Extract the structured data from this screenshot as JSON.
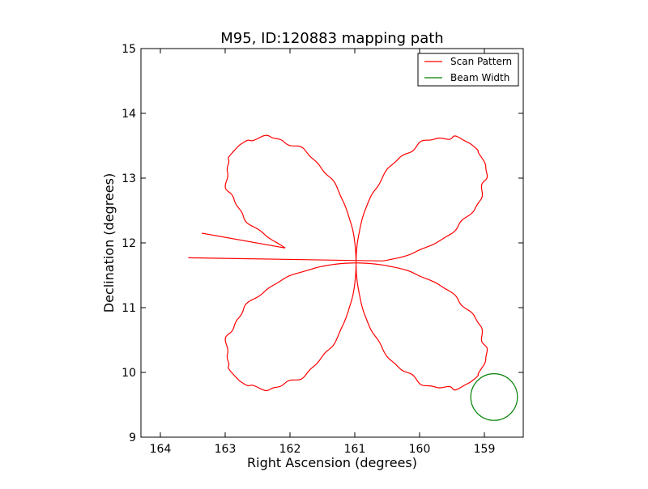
{
  "chart_data": {
    "type": "line",
    "title": "M95, ID:120883 mapping path",
    "xlabel": "Right Ascension (degrees)",
    "ylabel": "Declination (degrees)",
    "xlim": [
      164.3,
      158.4
    ],
    "ylim": [
      9,
      15
    ],
    "x_ticks": [
      164,
      163,
      162,
      161,
      160,
      159
    ],
    "y_ticks": [
      9,
      10,
      11,
      12,
      13,
      14,
      15
    ],
    "x_tick_labels": [
      "164",
      "163",
      "162",
      "161",
      "160",
      "159"
    ],
    "y_tick_labels": [
      "9",
      "10",
      "11",
      "12",
      "13",
      "14",
      "15"
    ],
    "grid": false,
    "legend": {
      "position": "top-right",
      "entries": [
        "Scan Pattern",
        "Beam Width"
      ]
    },
    "series": [
      {
        "name": "Scan Pattern",
        "color": "#ff0000",
        "shape": "four-petal rosette",
        "center": [
          160.98,
          11.69
        ],
        "lobe_extent_ra": 2.6,
        "lobe_extent_dec": 2.52,
        "start_point": [
          163.36,
          12.15
        ],
        "end_point": [
          163.57,
          11.77
        ]
      },
      {
        "name": "Beam Width",
        "color": "#008000",
        "shape": "circle",
        "center": [
          158.85,
          9.62
        ],
        "radius_dec": 0.36
      }
    ]
  }
}
